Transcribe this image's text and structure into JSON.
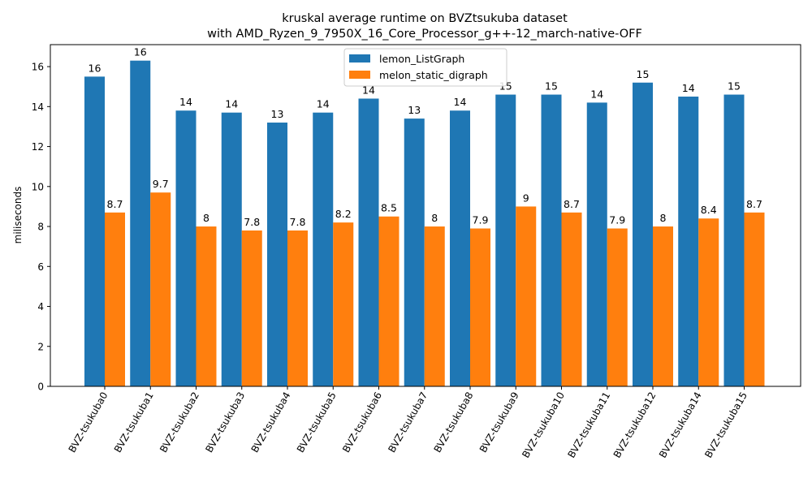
{
  "chart_data": {
    "type": "bar",
    "title": "kruskal average runtime on BVZtsukuba dataset",
    "subtitle": "with AMD_Ryzen_9_7950X_16_Core_Processor_g++-12_march-native-OFF",
    "xlabel": "",
    "ylabel": "miliseconds",
    "ylim": [
      0,
      17.1
    ],
    "yticks": [
      0,
      2,
      4,
      6,
      8,
      10,
      12,
      14,
      16
    ],
    "grid": false,
    "legend_position": "top-center",
    "categories": [
      "BVZ-tsukuba0",
      "BVZ-tsukuba1",
      "BVZ-tsukuba2",
      "BVZ-tsukuba3",
      "BVZ-tsukuba4",
      "BVZ-tsukuba5",
      "BVZ-tsukuba6",
      "BVZ-tsukuba7",
      "BVZ-tsukuba8",
      "BVZ-tsukuba9",
      "BVZ-tsukuba10",
      "BVZ-tsukuba11",
      "BVZ-tsukuba12",
      "BVZ-tsukuba14",
      "BVZ-tsukuba15"
    ],
    "series": [
      {
        "name": "lemon_ListGraph",
        "color": "#1f77b4",
        "values": [
          15.5,
          16.3,
          13.8,
          13.7,
          13.2,
          13.7,
          14.4,
          13.4,
          13.8,
          14.6,
          14.6,
          14.2,
          15.2,
          14.5,
          14.6
        ],
        "labels": [
          "16",
          "16",
          "14",
          "14",
          "13",
          "14",
          "14",
          "13",
          "14",
          "15",
          "15",
          "14",
          "15",
          "14",
          "15"
        ]
      },
      {
        "name": "melon_static_digraph",
        "color": "#ff7f0e",
        "values": [
          8.7,
          9.7,
          8.0,
          7.8,
          7.8,
          8.2,
          8.5,
          8.0,
          7.9,
          9.0,
          8.7,
          7.9,
          8.0,
          8.4,
          8.7
        ],
        "labels": [
          "8.7",
          "9.7",
          "8",
          "7.8",
          "7.8",
          "8.2",
          "8.5",
          "8",
          "7.9",
          "9",
          "8.7",
          "7.9",
          "8",
          "8.4",
          "8.7"
        ]
      }
    ]
  }
}
